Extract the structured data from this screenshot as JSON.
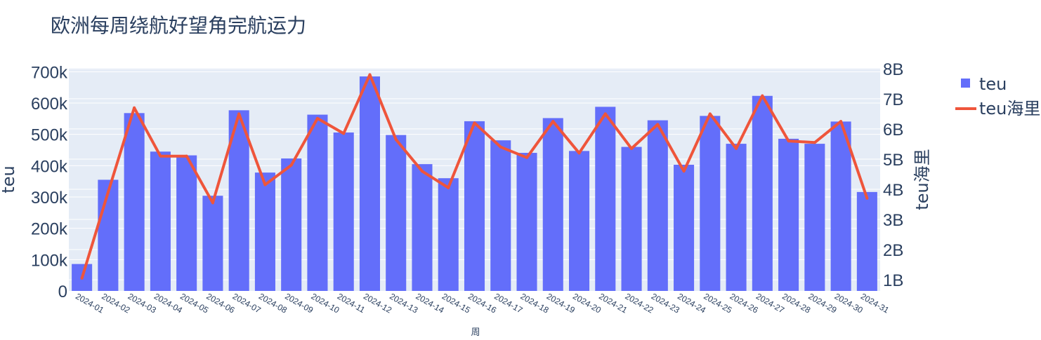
{
  "chart_data": {
    "type": "bar+line",
    "title": "欧洲每周绕航好望角完航运力",
    "xlabel": "周",
    "ylabel_left": "teu",
    "ylabel_right": "teu海里",
    "categories": [
      "2024-01",
      "2024-02",
      "2024-03",
      "2024-04",
      "2024-05",
      "2024-06",
      "2024-07",
      "2024-08",
      "2024-09",
      "2024-10",
      "2024-11",
      "2024-12",
      "2024-13",
      "2024-14",
      "2024-15",
      "2024-16",
      "2024-17",
      "2024-18",
      "2024-19",
      "2024-20",
      "2024-21",
      "2024-22",
      "2024-23",
      "2024-24",
      "2024-25",
      "2024-26",
      "2024-27",
      "2024-28",
      "2024-29",
      "2024-30",
      "2024-31"
    ],
    "series": [
      {
        "name": "teu",
        "type": "bar",
        "axis": "left",
        "color": "#636efa",
        "values": [
          86000,
          355000,
          568000,
          445000,
          433000,
          304000,
          577000,
          378000,
          423000,
          563000,
          506000,
          685000,
          498000,
          405000,
          360000,
          542000,
          481000,
          441000,
          552000,
          447000,
          588000,
          460000,
          545000,
          403000,
          559000,
          470000,
          623000,
          486000,
          470000,
          541000,
          316000
        ]
      },
      {
        "name": "teu海里",
        "type": "line",
        "axis": "right",
        "color": "#ef553b",
        "values": [
          1050000000.0,
          3900000000.0,
          6700000000.0,
          5100000000.0,
          5100000000.0,
          3550000000.0,
          6500000000.0,
          4150000000.0,
          4800000000.0,
          6350000000.0,
          5850000000.0,
          7800000000.0,
          5650000000.0,
          4600000000.0,
          4050000000.0,
          6200000000.0,
          5400000000.0,
          5050000000.0,
          6250000000.0,
          5200000000.0,
          6500000000.0,
          5350000000.0,
          6150000000.0,
          4600000000.0,
          6500000000.0,
          5350000000.0,
          7100000000.0,
          5600000000.0,
          5550000000.0,
          6250000000.0,
          3700000000.0
        ]
      }
    ],
    "yticks_left": [
      "0",
      "100k",
      "200k",
      "300k",
      "400k",
      "500k",
      "600k",
      "700k"
    ],
    "yticks_left_values": [
      0,
      100000,
      200000,
      300000,
      400000,
      500000,
      600000,
      700000
    ],
    "yticks_right": [
      "1B",
      "2B",
      "3B",
      "4B",
      "5B",
      "6B",
      "7B",
      "8B"
    ],
    "yticks_right_values": [
      1000000000.0,
      2000000000.0,
      3000000000.0,
      4000000000.0,
      5000000000.0,
      6000000000.0,
      7000000000.0,
      8000000000.0
    ],
    "ylim_left": [
      0,
      712000
    ],
    "ylim_right": [
      630000000,
      8020000000
    ],
    "legend": [
      {
        "label": "teu",
        "marker": "square",
        "color": "#636efa"
      },
      {
        "label": "teu海里",
        "marker": "line",
        "color": "#ef553b"
      }
    ],
    "legend_position": "top-right",
    "grid": true,
    "plot_bg": "#e5ecf6"
  }
}
